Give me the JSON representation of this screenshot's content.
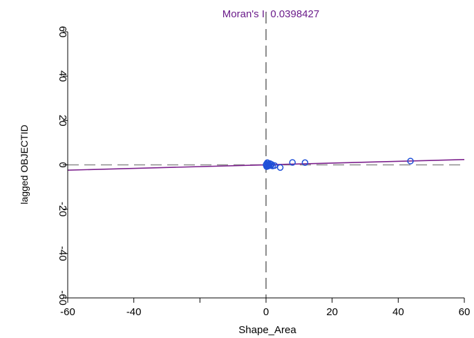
{
  "chart_data": {
    "type": "scatter",
    "title": "Moran's I: 0.0398427",
    "xlabel": "Shape_Area",
    "ylabel": "lagged OBJECTID",
    "xlim": [
      -60,
      60
    ],
    "ylim": [
      -60,
      60
    ],
    "x_ticks": [
      -60,
      -40,
      0,
      20,
      40,
      60
    ],
    "x_tick_labels": [
      "-60",
      "-40",
      "0",
      "20",
      "40",
      "60"
    ],
    "y_ticks": [
      -60,
      -40,
      -20,
      0,
      20,
      40,
      60
    ],
    "y_tick_labels": [
      "-60",
      "-40",
      "-20",
      "0",
      "20",
      "40",
      "60"
    ],
    "grid": false,
    "points": [
      {
        "x": 0.1,
        "y": 0.3
      },
      {
        "x": 0.3,
        "y": -0.4
      },
      {
        "x": 0.5,
        "y": 0.8
      },
      {
        "x": 0.2,
        "y": -0.8
      },
      {
        "x": 0.8,
        "y": 0.1
      },
      {
        "x": 1.0,
        "y": -0.2
      },
      {
        "x": 0.4,
        "y": 1.0
      },
      {
        "x": 0.6,
        "y": -0.6
      },
      {
        "x": 1.2,
        "y": 0.6
      },
      {
        "x": 1.4,
        "y": -0.3
      },
      {
        "x": 0.0,
        "y": 0.0
      },
      {
        "x": 1.7,
        "y": 0.2
      },
      {
        "x": 2.0,
        "y": -0.5
      },
      {
        "x": 2.6,
        "y": -0.3
      },
      {
        "x": 4.3,
        "y": -1.2
      },
      {
        "x": 8.0,
        "y": 1.1
      },
      {
        "x": 11.8,
        "y": 1.0
      },
      {
        "x": 43.7,
        "y": 1.7
      }
    ],
    "regression_line": {
      "slope": 0.0398427,
      "intercept": 0
    },
    "reference_lines": {
      "x": 0,
      "y": 0
    },
    "colors": {
      "points": "#1f4fd8",
      "regression": "#7b1f8c",
      "reference": "#8c8c8c",
      "title": "#6a1b8a"
    }
  }
}
